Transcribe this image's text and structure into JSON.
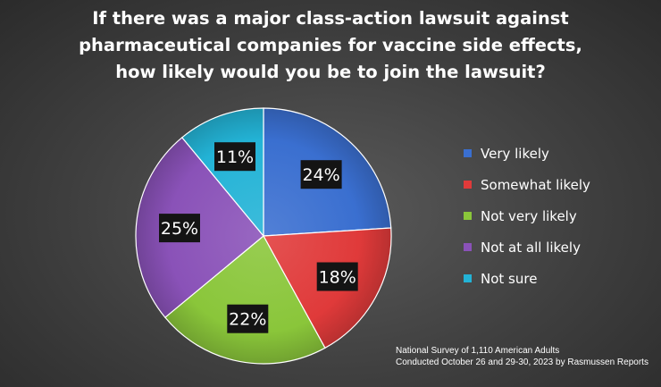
{
  "chart_data": {
    "type": "pie",
    "title_lines": [
      "If there was a major class-action lawsuit against",
      "pharmaceutical companies for vaccine side effects,",
      "how likely would you be to join the lawsuit?"
    ],
    "categories": [
      "Very likely",
      "Somewhat likely",
      "Not very likely",
      "Not at all likely",
      "Not sure"
    ],
    "values": [
      24,
      18,
      22,
      25,
      11
    ],
    "value_labels": [
      "24%",
      "18%",
      "22%",
      "25%",
      "11%"
    ],
    "colors": [
      "#3a6fd0",
      "#e03a3a",
      "#8ac63a",
      "#8a52b8",
      "#23b3d6"
    ],
    "legend_position": "right"
  },
  "source_note": [
    "National Survey of 1,110 American Adults",
    "Conducted October 26 and 29-30, 2023 by Rasmussen Reports"
  ]
}
